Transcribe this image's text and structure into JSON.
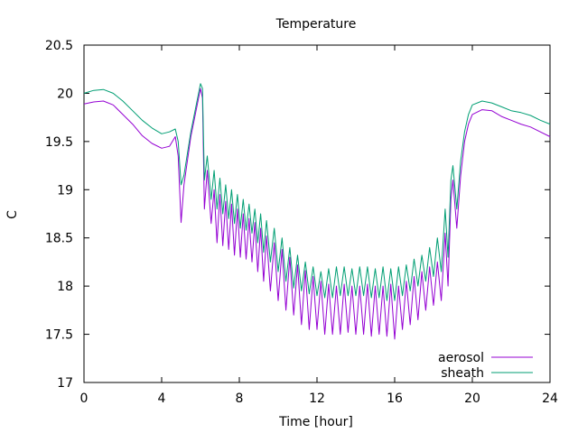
{
  "chart_data": {
    "type": "line",
    "title": "Temperature",
    "xlabel": "Time [hour]",
    "ylabel": "C",
    "xlim": [
      0,
      24
    ],
    "ylim": [
      17,
      20.5
    ],
    "x_ticks": [
      0,
      4,
      8,
      12,
      16,
      20,
      24
    ],
    "y_ticks": [
      17,
      17.5,
      18,
      18.5,
      19,
      19.5,
      20,
      20.5
    ],
    "x_tick_labels": [
      "0",
      "4",
      "8",
      "12",
      "16",
      "20",
      "24"
    ],
    "y_tick_labels": [
      "17",
      "17.5",
      "18",
      "18.5",
      "19",
      "19.5",
      "20",
      "20.5"
    ],
    "grid": false,
    "legend_position": "bottom-right",
    "series": [
      {
        "name": "aerosol",
        "color": "#9400d3",
        "x": [
          0,
          0.5,
          1,
          1.5,
          2,
          2.5,
          3,
          3.5,
          4,
          4.4,
          4.7,
          4.85,
          5.0,
          5.15,
          5.5,
          6.0,
          6.1,
          6.2,
          6.35,
          6.55,
          6.7,
          6.85,
          7.0,
          7.15,
          7.3,
          7.45,
          7.6,
          7.75,
          7.9,
          8.05,
          8.2,
          8.35,
          8.5,
          8.65,
          8.8,
          8.95,
          9.1,
          9.25,
          9.4,
          9.6,
          9.8,
          10.0,
          10.2,
          10.4,
          10.6,
          10.8,
          11.0,
          11.2,
          11.4,
          11.6,
          11.8,
          12.0,
          12.2,
          12.4,
          12.6,
          12.8,
          13.0,
          13.2,
          13.4,
          13.6,
          13.8,
          14.0,
          14.2,
          14.4,
          14.6,
          14.8,
          15.0,
          15.2,
          15.4,
          15.6,
          15.8,
          16.0,
          16.2,
          16.4,
          16.6,
          16.8,
          17.0,
          17.2,
          17.4,
          17.6,
          17.8,
          18.0,
          18.2,
          18.4,
          18.6,
          18.75,
          18.9,
          19.0,
          19.2,
          19.4,
          19.6,
          19.8,
          20.0,
          20.5,
          21.0,
          21.5,
          22.0,
          22.5,
          23.0,
          23.5,
          24
        ],
        "values": [
          19.89,
          19.91,
          19.92,
          19.88,
          19.78,
          19.68,
          19.56,
          19.48,
          19.43,
          19.45,
          19.55,
          19.35,
          18.66,
          19.05,
          19.55,
          20.05,
          19.95,
          18.8,
          19.2,
          18.65,
          19.0,
          18.45,
          18.95,
          18.42,
          18.88,
          18.38,
          18.85,
          18.32,
          18.8,
          18.3,
          18.75,
          18.28,
          18.7,
          18.25,
          18.66,
          18.15,
          18.6,
          18.05,
          18.52,
          17.95,
          18.45,
          17.85,
          18.38,
          17.75,
          18.3,
          17.7,
          18.22,
          17.6,
          18.16,
          17.55,
          18.1,
          17.55,
          18.05,
          17.5,
          18.02,
          17.5,
          18.0,
          17.5,
          18.02,
          17.52,
          18.0,
          17.5,
          18.0,
          17.5,
          18.02,
          17.48,
          18.0,
          17.5,
          18.0,
          17.48,
          18.02,
          17.45,
          18.0,
          17.55,
          18.05,
          17.6,
          18.1,
          17.65,
          18.15,
          17.75,
          18.2,
          17.8,
          18.25,
          17.85,
          18.55,
          18.0,
          18.9,
          19.1,
          18.6,
          19.15,
          19.5,
          19.68,
          19.78,
          19.83,
          19.82,
          19.76,
          19.72,
          19.68,
          19.65,
          19.6,
          19.55
        ]
      },
      {
        "name": "sheath",
        "color": "#009e73",
        "x": [
          0,
          0.5,
          1,
          1.5,
          2,
          2.5,
          3,
          3.5,
          4,
          4.4,
          4.7,
          4.85,
          5.0,
          5.15,
          5.5,
          6.0,
          6.1,
          6.2,
          6.35,
          6.55,
          6.7,
          6.85,
          7.0,
          7.15,
          7.3,
          7.45,
          7.6,
          7.75,
          7.9,
          8.05,
          8.2,
          8.35,
          8.5,
          8.65,
          8.8,
          8.95,
          9.1,
          9.25,
          9.4,
          9.6,
          9.8,
          10.0,
          10.2,
          10.4,
          10.6,
          10.8,
          11.0,
          11.2,
          11.4,
          11.6,
          11.8,
          12.0,
          12.2,
          12.4,
          12.6,
          12.8,
          13.0,
          13.2,
          13.4,
          13.6,
          13.8,
          14.0,
          14.2,
          14.4,
          14.6,
          14.8,
          15.0,
          15.2,
          15.4,
          15.6,
          15.8,
          16.0,
          16.2,
          16.4,
          16.6,
          16.8,
          17.0,
          17.2,
          17.4,
          17.6,
          17.8,
          18.0,
          18.2,
          18.4,
          18.6,
          18.75,
          18.9,
          19.0,
          19.2,
          19.4,
          19.6,
          19.8,
          20.0,
          20.5,
          21.0,
          21.5,
          22.0,
          22.5,
          23.0,
          23.5,
          24
        ],
        "values": [
          20.0,
          20.03,
          20.04,
          20.0,
          19.92,
          19.82,
          19.72,
          19.64,
          19.58,
          19.6,
          19.63,
          19.5,
          19.05,
          19.15,
          19.6,
          20.1,
          20.05,
          19.1,
          19.35,
          18.9,
          19.2,
          18.8,
          19.12,
          18.75,
          19.05,
          18.7,
          19.0,
          18.65,
          18.95,
          18.6,
          18.9,
          18.58,
          18.85,
          18.55,
          18.8,
          18.45,
          18.75,
          18.35,
          18.68,
          18.25,
          18.6,
          18.15,
          18.5,
          18.05,
          18.4,
          17.98,
          18.32,
          17.95,
          18.25,
          17.92,
          18.2,
          17.9,
          18.15,
          17.88,
          18.18,
          17.88,
          18.2,
          17.9,
          18.2,
          17.9,
          18.18,
          17.9,
          18.2,
          17.9,
          18.2,
          17.88,
          18.18,
          17.88,
          18.2,
          17.85,
          18.18,
          17.85,
          18.2,
          17.9,
          18.22,
          17.95,
          18.28,
          18.0,
          18.32,
          18.05,
          18.4,
          18.1,
          18.5,
          18.15,
          18.8,
          18.3,
          19.1,
          19.25,
          18.8,
          19.3,
          19.6,
          19.78,
          19.88,
          19.92,
          19.9,
          19.86,
          19.82,
          19.8,
          19.77,
          19.72,
          19.68
        ]
      }
    ]
  }
}
